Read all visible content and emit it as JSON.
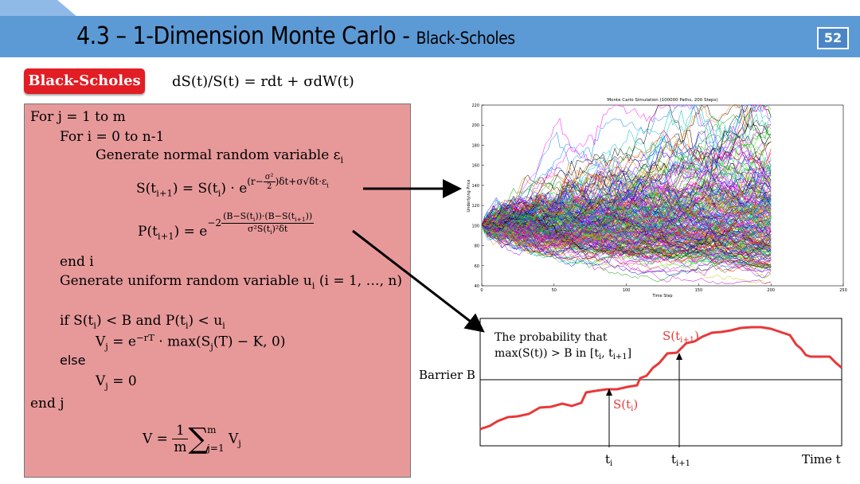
{
  "slide": {
    "title_main": "4.3 – 1-Dimension Monte Carlo -",
    "title_sub": "Black-Scholes",
    "page_number": "52",
    "accent_color": "#5c9ad6",
    "badge_color": "#e21d24",
    "box_color": "#e7999a"
  },
  "badge": {
    "label": "Black-Scholes"
  },
  "sde": "dS(t)/S(t) = rdt + σdW(t)",
  "algorithm": {
    "for_j": "For j = 1 to m",
    "for_i": "For i = 0 to n-1",
    "gen_normal": "Generate normal random variable ε",
    "gen_normal_sub": "i",
    "s_lhs": "S(t",
    "p_lhs": "P(t",
    "end_i": "end i",
    "gen_uniform": "Generate uniform random variable u",
    "gen_uniform_rest": " (i = 1, …, n)",
    "if_line": "if S(t",
    "else": "else",
    "vj_zero": "V",
    "end_j": "end j"
  },
  "chart_data": {
    "type": "line",
    "title": "Monte Carlo Simulation (100000 Paths, 200 Steps)",
    "xlabel": "Time Step",
    "ylabel": "Underlying Price",
    "xlim": [
      0,
      250
    ],
    "ylim": [
      40,
      220
    ],
    "x_ticks": [
      "0",
      "50",
      "100",
      "150",
      "200",
      "250"
    ],
    "y_ticks": [
      "40",
      "60",
      "80",
      "100",
      "120",
      "140",
      "160",
      "180",
      "200",
      "220"
    ],
    "steps": 200,
    "start_value": 100,
    "end_range_approx": [
      45,
      215
    ],
    "grid": false,
    "legend": "none"
  },
  "diagram": {
    "annotation_line1": "The probability that",
    "annotation_line2": "max(S(t)) > B in [t",
    "barrier_label": "Barrier B",
    "s_ti_label": "S(t",
    "s_ti1_label": "S(t",
    "t_i_label": "t",
    "t_i1_label": "t",
    "time_label": "Time t",
    "path_color": "#e8393a"
  }
}
